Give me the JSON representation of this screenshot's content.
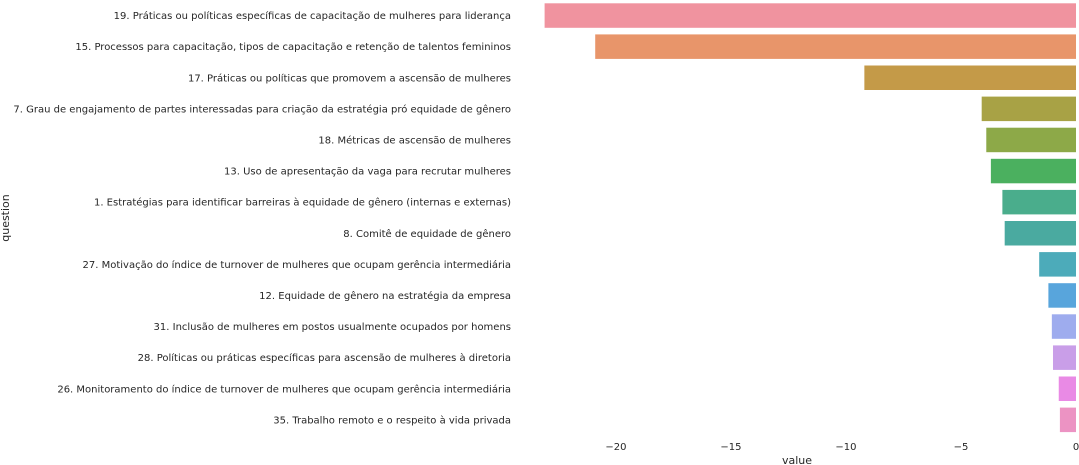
{
  "chart_data": {
    "type": "bar",
    "orientation": "horizontal",
    "title": "",
    "xlabel": "value",
    "ylabel": "question",
    "xlim": [
      -23.3,
      0
    ],
    "grid": false,
    "xticks": [
      -20,
      -15,
      -10,
      -5,
      0
    ],
    "xtick_labels": [
      "−20",
      "−15",
      "−10",
      "−5",
      "0"
    ],
    "categories": [
      "19. Práticas ou políticas específicas de capacitação de mulheres para liderança",
      "15. Processos para capacitação, tipos de capacitação e retenção de talentos femininos",
      "17. Práticas ou políticas que promovem a ascensão de mulheres",
      "7. Grau de engajamento de partes interessadas para criação da estratégia pró equidade de gênero",
      "18. Métricas de ascensão de mulheres",
      "13. Uso de apresentação da vaga para recrutar mulheres",
      "1. Estratégias para identificar barreiras à equidade de gênero (internas e externas)",
      "8. Comitê de equidade de gênero",
      "27. Motivação do índice de turnover de mulheres que ocupam gerência intermediária",
      "12. Equidade de gênero na estratégia da empresa",
      "31. Inclusão de mulheres em postos usualmente ocupados por homens",
      "28. Políticas ou práticas específicas para ascensão de mulheres à diretoria",
      "26. Monitoramento do índice de turnover de mulheres que ocupam gerência intermediária",
      "35. Trabalho remoto e o respeito à vida privada"
    ],
    "values": [
      -23.1,
      -20.9,
      -9.2,
      -4.1,
      -3.9,
      -3.7,
      -3.2,
      -3.1,
      -1.6,
      -1.2,
      -1.05,
      -1.0,
      -0.75,
      -0.7
    ],
    "colors": [
      "#f0939f",
      "#e8956a",
      "#c49a48",
      "#a8a245",
      "#8da948",
      "#4bb05f",
      "#4aad8c",
      "#4aaaa0",
      "#4cabba",
      "#58a5dc",
      "#9eacee",
      "#c99ee8",
      "#e98ae5",
      "#ec93c3"
    ]
  }
}
